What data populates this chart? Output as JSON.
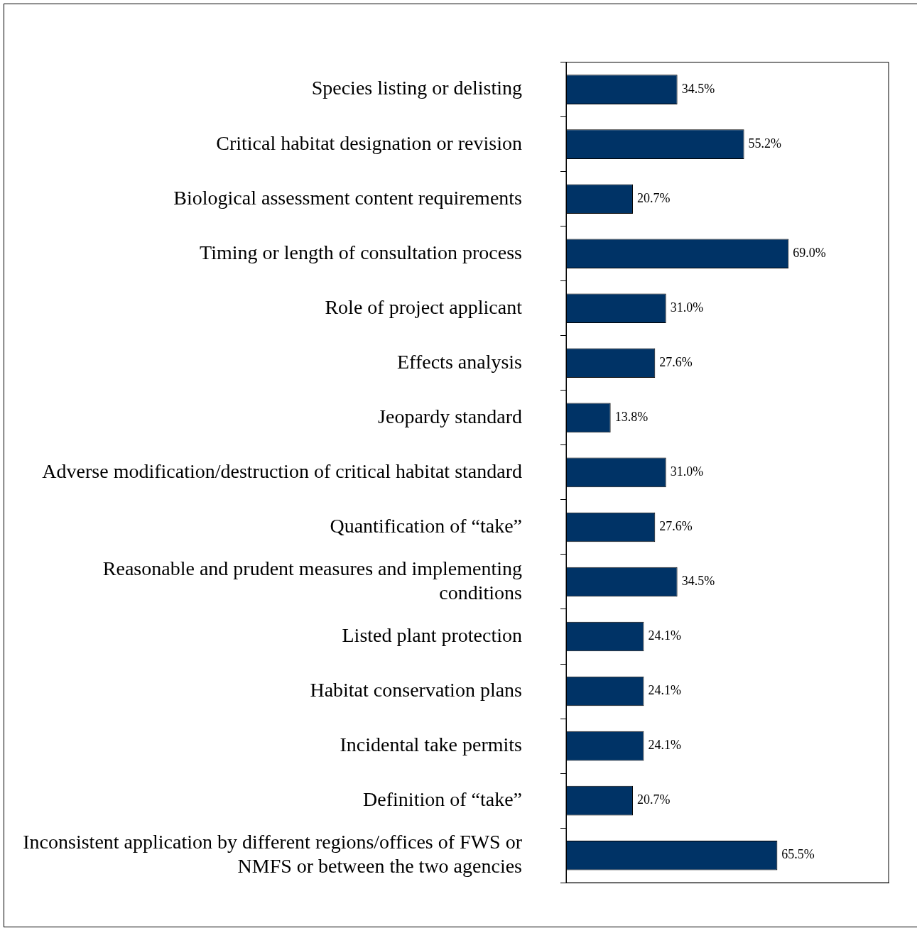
{
  "chart_data": {
    "type": "bar",
    "orientation": "horizontal",
    "categories": [
      "Species listing or delisting",
      "Critical habitat designation or revision",
      "Biological assessment content requirements",
      "Timing or length of consultation process",
      "Role of project applicant",
      "Effects analysis",
      "Jeopardy standard",
      "Adverse modification/destruction of critical habitat standard",
      "Quantification of “take”",
      "Reasonable and prudent measures and implementing conditions",
      "Listed plant protection",
      "Habitat conservation plans",
      "Incidental take permits",
      "Definition of “take”",
      "Inconsistent application by different regions/offices of FWS or NMFS or between the two agencies"
    ],
    "values": [
      34.5,
      55.2,
      20.7,
      69.0,
      31.0,
      27.6,
      13.8,
      31.0,
      27.6,
      34.5,
      24.1,
      24.1,
      24.1,
      20.7,
      65.5
    ],
    "value_labels": [
      "34.5%",
      "55.2%",
      "20.7%",
      "69.0%",
      "31.0%",
      "27.6%",
      "13.8%",
      "31.0%",
      "27.6%",
      "34.5%",
      "24.1%",
      "24.1%",
      "24.1%",
      "20.7%",
      "65.5%"
    ],
    "color": "#003366",
    "xlim": [
      0,
      100
    ]
  }
}
